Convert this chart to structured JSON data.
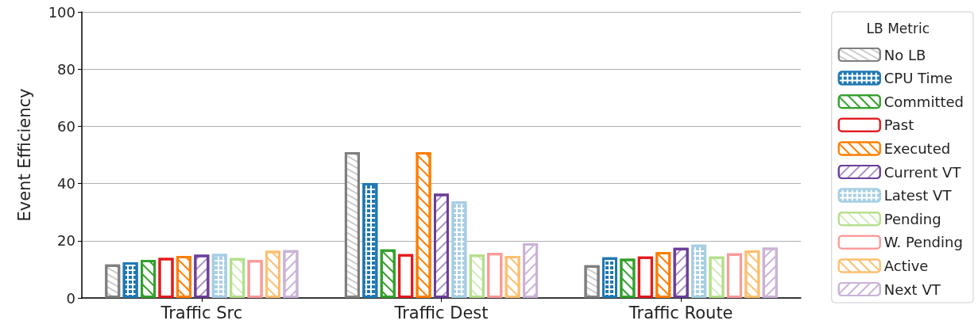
{
  "chart_data": {
    "type": "bar",
    "ylabel": "Event Efficiency",
    "legend_title": "LB Metric",
    "categories": [
      "Traffic Src",
      "Traffic Dest",
      "Traffic Route"
    ],
    "series": [
      {
        "name": "No LB",
        "color": "#7f7f7f",
        "values": [
          11.7,
          51.0,
          11.4
        ]
      },
      {
        "name": "CPU Time",
        "color": "#1f78b4",
        "values": [
          12.5,
          40.2,
          14.2
        ]
      },
      {
        "name": "Committed",
        "color": "#33a02c",
        "values": [
          13.3,
          17.0,
          13.7
        ]
      },
      {
        "name": "Past",
        "color": "#e31a1c",
        "values": [
          14.0,
          15.3,
          14.5
        ]
      },
      {
        "name": "Executed",
        "color": "#ff7f00",
        "values": [
          14.7,
          51.0,
          16.1
        ]
      },
      {
        "name": "Current VT",
        "color": "#6a3d9a",
        "values": [
          15.1,
          36.4,
          17.5
        ]
      },
      {
        "name": "Latest VT",
        "color": "#a6cee3",
        "values": [
          15.4,
          33.7,
          18.6
        ]
      },
      {
        "name": "Pending",
        "color": "#b2df8a",
        "values": [
          13.9,
          15.2,
          14.5
        ]
      },
      {
        "name": "W. Pending",
        "color": "#fb9a99",
        "values": [
          13.2,
          15.7,
          15.6
        ]
      },
      {
        "name": "Active",
        "color": "#fdbf6f",
        "values": [
          16.5,
          14.7,
          16.6
        ]
      },
      {
        "name": "Next VT",
        "color": "#cab2d6",
        "values": [
          16.7,
          19.1,
          17.6
        ]
      }
    ],
    "ylim": [
      0,
      100
    ],
    "yticks": [
      0,
      20,
      40,
      60,
      80,
      100
    ],
    "grid": "y",
    "legend": "right"
  }
}
